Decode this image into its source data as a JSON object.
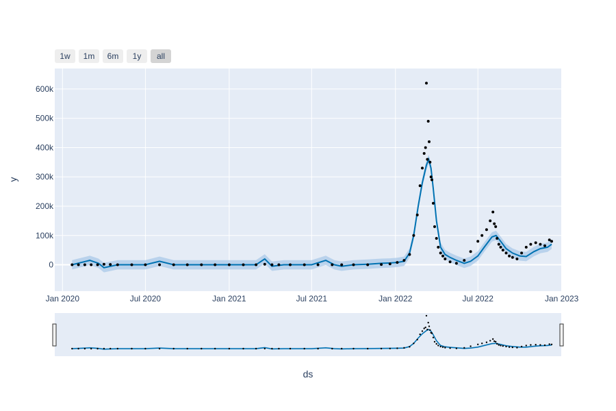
{
  "colors": {
    "plot_bg": "#e5ecf6",
    "grid": "#ffffff",
    "marker": "#000000",
    "forecast_line": "#0072b2",
    "uncertainty_band": "#a6c8e8",
    "button_bg": "#eeeeee",
    "button_active_bg": "#d4d4d4"
  },
  "range_selector": {
    "buttons": [
      {
        "label": "1w",
        "active": false
      },
      {
        "label": "1m",
        "active": false
      },
      {
        "label": "6m",
        "active": false
      },
      {
        "label": "1y",
        "active": false
      },
      {
        "label": "all",
        "active": true
      }
    ]
  },
  "chart_data": {
    "type": "scatter",
    "xlabel": "ds",
    "ylabel": "y",
    "xlim": [
      "2019-12-15",
      "2022-12-31"
    ],
    "ylim": [
      -90000,
      670000
    ],
    "x_ticks": [
      {
        "date": "2020-01-01",
        "label": "Jan 2020"
      },
      {
        "date": "2020-07-01",
        "label": "Jul 2020"
      },
      {
        "date": "2021-01-01",
        "label": "Jan 2021"
      },
      {
        "date": "2021-07-01",
        "label": "Jul 2021"
      },
      {
        "date": "2022-01-01",
        "label": "Jan 2022"
      },
      {
        "date": "2022-07-01",
        "label": "Jul 2022"
      },
      {
        "date": "2023-01-01",
        "label": "Jan 2023"
      }
    ],
    "y_ticks": [
      {
        "value": 0,
        "label": "0"
      },
      {
        "value": 100000,
        "label": "100k"
      },
      {
        "value": 200000,
        "label": "200k"
      },
      {
        "value": 300000,
        "label": "300k"
      },
      {
        "value": 400000,
        "label": "400k"
      },
      {
        "value": 500000,
        "label": "500k"
      },
      {
        "value": 600000,
        "label": "600k"
      }
    ],
    "grid": true,
    "rangeslider": true,
    "actual": {
      "x": [
        "2020-01-22",
        "2020-02-05",
        "2020-02-19",
        "2020-03-04",
        "2020-03-18",
        "2020-04-01",
        "2020-04-15",
        "2020-05-01",
        "2020-06-01",
        "2020-07-01",
        "2020-08-01",
        "2020-09-01",
        "2020-10-01",
        "2020-11-01",
        "2020-12-01",
        "2021-01-01",
        "2021-02-01",
        "2021-03-01",
        "2021-03-20",
        "2021-04-05",
        "2021-04-20",
        "2021-05-15",
        "2021-06-15",
        "2021-07-15",
        "2021-08-15",
        "2021-09-05",
        "2021-10-01",
        "2021-11-01",
        "2021-12-01",
        "2021-12-20",
        "2022-01-05",
        "2022-01-20",
        "2022-02-01",
        "2022-02-10",
        "2022-02-18",
        "2022-02-24",
        "2022-03-01",
        "2022-03-05",
        "2022-03-08",
        "2022-03-10",
        "2022-03-12",
        "2022-03-14",
        "2022-03-16",
        "2022-03-18",
        "2022-03-20",
        "2022-03-22",
        "2022-03-25",
        "2022-03-28",
        "2022-04-01",
        "2022-04-05",
        "2022-04-10",
        "2022-04-15",
        "2022-04-20",
        "2022-05-01",
        "2022-05-15",
        "2022-06-01",
        "2022-06-15",
        "2022-07-01",
        "2022-07-10",
        "2022-07-20",
        "2022-07-28",
        "2022-08-03",
        "2022-08-06",
        "2022-08-09",
        "2022-08-12",
        "2022-08-16",
        "2022-08-20",
        "2022-08-25",
        "2022-09-01",
        "2022-09-08",
        "2022-09-15",
        "2022-09-25",
        "2022-10-05",
        "2022-10-15",
        "2022-10-25",
        "2022-11-05",
        "2022-11-15",
        "2022-11-25",
        "2022-12-05",
        "2022-12-10"
      ],
      "y": [
        0,
        0,
        0,
        0,
        0,
        2000,
        1000,
        0,
        0,
        0,
        0,
        0,
        0,
        0,
        0,
        0,
        0,
        0,
        2000,
        0,
        0,
        0,
        0,
        0,
        0,
        0,
        0,
        0,
        1000,
        3000,
        8000,
        15000,
        35000,
        100000,
        170000,
        270000,
        330000,
        380000,
        400000,
        620000,
        360000,
        490000,
        420000,
        350000,
        300000,
        290000,
        210000,
        130000,
        90000,
        60000,
        40000,
        30000,
        20000,
        10000,
        5000,
        15000,
        45000,
        80000,
        100000,
        120000,
        150000,
        180000,
        140000,
        130000,
        90000,
        70000,
        60000,
        50000,
        40000,
        30000,
        25000,
        20000,
        40000,
        60000,
        70000,
        75000,
        70000,
        65000,
        85000,
        80000
      ]
    },
    "forecast": {
      "x": [
        "2020-01-22",
        "2020-03-01",
        "2020-03-20",
        "2020-04-01",
        "2020-05-01",
        "2020-06-01",
        "2020-07-01",
        "2020-08-01",
        "2020-09-01",
        "2020-10-01",
        "2020-11-01",
        "2020-12-01",
        "2021-01-01",
        "2021-02-01",
        "2021-03-01",
        "2021-03-20",
        "2021-04-05",
        "2021-05-01",
        "2021-06-01",
        "2021-07-01",
        "2021-08-01",
        "2021-08-20",
        "2021-09-05",
        "2021-10-01",
        "2021-11-01",
        "2021-12-01",
        "2021-12-20",
        "2022-01-05",
        "2022-01-20",
        "2022-02-01",
        "2022-02-10",
        "2022-02-20",
        "2022-03-01",
        "2022-03-10",
        "2022-03-15",
        "2022-03-20",
        "2022-03-25",
        "2022-04-01",
        "2022-04-10",
        "2022-04-20",
        "2022-05-01",
        "2022-05-15",
        "2022-06-01",
        "2022-06-15",
        "2022-07-01",
        "2022-07-15",
        "2022-08-01",
        "2022-08-10",
        "2022-08-20",
        "2022-09-01",
        "2022-09-15",
        "2022-10-01",
        "2022-10-15",
        "2022-11-01",
        "2022-11-15",
        "2022-12-01",
        "2022-12-10"
      ],
      "y": [
        0,
        15000,
        5000,
        -10000,
        0,
        0,
        0,
        12000,
        0,
        0,
        0,
        0,
        0,
        0,
        0,
        20000,
        -5000,
        0,
        0,
        0,
        15000,
        0,
        -5000,
        0,
        2000,
        5000,
        6000,
        8000,
        12000,
        40000,
        100000,
        200000,
        280000,
        340000,
        360000,
        330000,
        260000,
        150000,
        60000,
        35000,
        25000,
        15000,
        5000,
        12000,
        30000,
        60000,
        95000,
        100000,
        80000,
        55000,
        40000,
        30000,
        28000,
        45000,
        55000,
        60000,
        70000
      ]
    }
  }
}
